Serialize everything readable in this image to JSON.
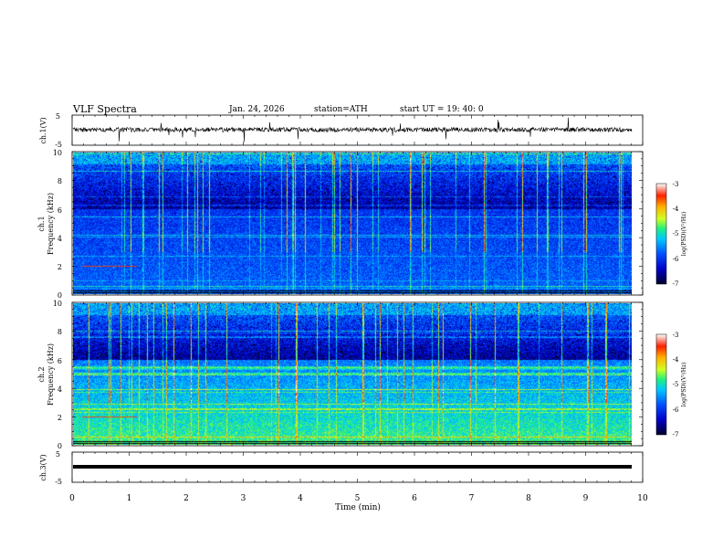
{
  "header": {
    "title": "VLF  Spectra",
    "date": "Jan. 24, 2026",
    "station": "station=ATH",
    "start_ut": "start  UT =   19: 40: 0"
  },
  "chart_data": [
    {
      "type": "line",
      "id": "ch1-waveform",
      "ylabel": "ch.1(V)",
      "ylim": [
        -5,
        5
      ],
      "yticks": [
        "5",
        "-5"
      ],
      "x_range_min": [
        0,
        9.8
      ],
      "description_values": "broadband noisy waveform near 0 V with spikes"
    },
    {
      "type": "heatmap",
      "id": "ch1-spectrogram",
      "ylabel": "ch.1\nFrequency (kHz)",
      "ylabel_lines": [
        "ch.1",
        "Frequency (kHz)"
      ],
      "ylim": [
        0,
        10
      ],
      "yticks": [
        "0",
        "2",
        "4",
        "6",
        "8",
        "10"
      ],
      "x_range_min": [
        0,
        9.8
      ],
      "colorbar": {
        "label": "log(PSD)(V²/Hz)",
        "range": [
          -7,
          -3
        ],
        "ticks": [
          "-3",
          "-4",
          "-5",
          "-6",
          "-7"
        ],
        "colors": [
          "#00002a",
          "#0000c8",
          "#0050ff",
          "#00c8ff",
          "#20f080",
          "#d0ff20",
          "#ffb000",
          "#ff2000",
          "#ffffff"
        ]
      }
    },
    {
      "type": "heatmap",
      "id": "ch2-spectrogram",
      "ylabel_lines": [
        "ch.2",
        "Frequency (kHz)"
      ],
      "ylim": [
        0,
        10
      ],
      "yticks": [
        "0",
        "2",
        "4",
        "6",
        "8",
        "10"
      ],
      "x_range_min": [
        0,
        9.8
      ],
      "colorbar": {
        "label": "log(PSD)(V²/Hz)",
        "range": [
          -7,
          -3
        ],
        "ticks": [
          "-3",
          "-4",
          "-5",
          "-6",
          "-7"
        ]
      }
    },
    {
      "type": "line",
      "id": "ch3-waveform",
      "ylabel": "ch.3(V)",
      "ylim": [
        -5,
        5
      ],
      "yticks": [
        "5",
        "-5"
      ],
      "x_range_min": [
        0,
        9.8
      ],
      "constant_level_v": 0
    }
  ],
  "x_axis": {
    "label": "Time  (min)",
    "range": [
      0,
      10
    ],
    "ticks": [
      "0",
      "1",
      "2",
      "3",
      "4",
      "5",
      "6",
      "7",
      "8",
      "9",
      "10"
    ]
  }
}
